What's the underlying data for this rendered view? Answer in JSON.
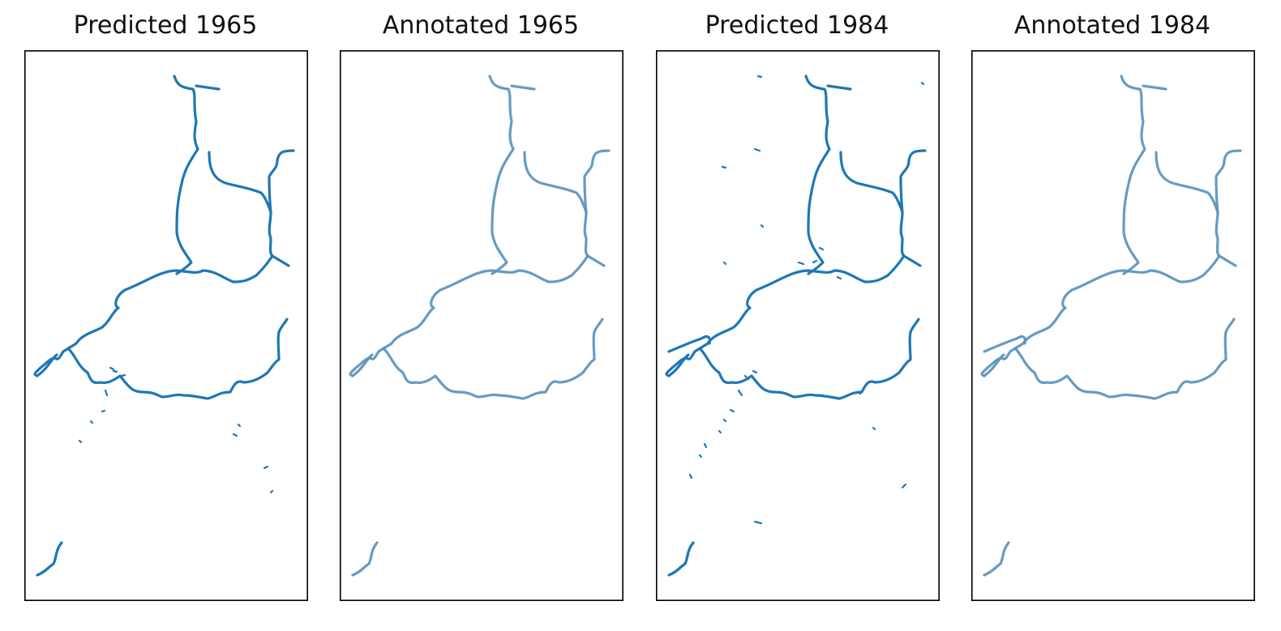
{
  "figure": {
    "panels": [
      {
        "title": "Predicted 1965",
        "kind": "predicted",
        "color": "#1f77b4",
        "noise": "p1965"
      },
      {
        "title": "Annotated 1965",
        "kind": "annotated",
        "color": "#5a93bd",
        "noise": "none"
      },
      {
        "title": "Predicted 1984",
        "kind": "predicted",
        "color": "#1f77b4",
        "noise": "p1984"
      },
      {
        "title": "Annotated 1984",
        "kind": "annotated",
        "color": "#5a93bd",
        "noise": "none"
      }
    ]
  }
}
